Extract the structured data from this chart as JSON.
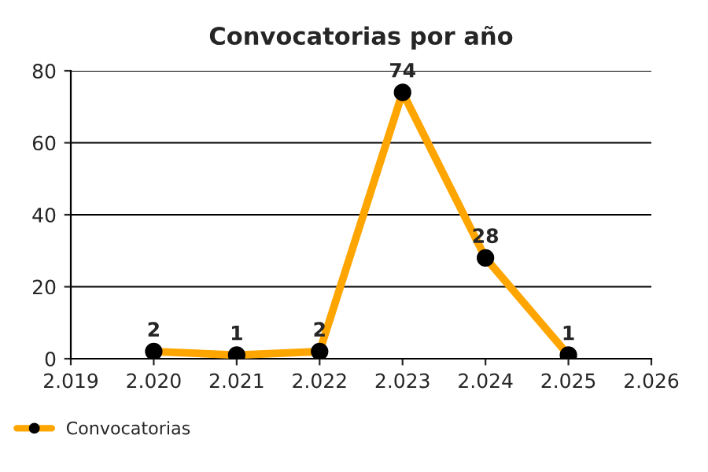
{
  "chart_data": {
    "type": "line",
    "title": "Convocatorias por año",
    "x": [
      2020,
      2021,
      2022,
      2023,
      2024,
      2025
    ],
    "series": [
      {
        "name": "Convocatorias",
        "color": "#ffa500",
        "values": [
          2,
          1,
          2,
          74,
          28,
          1
        ]
      }
    ],
    "xlim": [
      2019,
      2026
    ],
    "xticks": [
      {
        "value": 2019,
        "label": "2.019"
      },
      {
        "value": 2020,
        "label": "2.020"
      },
      {
        "value": 2021,
        "label": "2.021"
      },
      {
        "value": 2022,
        "label": "2.022"
      },
      {
        "value": 2023,
        "label": "2.023"
      },
      {
        "value": 2024,
        "label": "2.024"
      },
      {
        "value": 2025,
        "label": "2.025"
      },
      {
        "value": 2026,
        "label": "2.026"
      }
    ],
    "ylim": [
      0,
      80
    ],
    "yticks": [
      0,
      20,
      40,
      60,
      80
    ],
    "grid": "y",
    "legend": "bottom left",
    "marker": "circle",
    "line_style": "solid",
    "data_labels": true
  }
}
